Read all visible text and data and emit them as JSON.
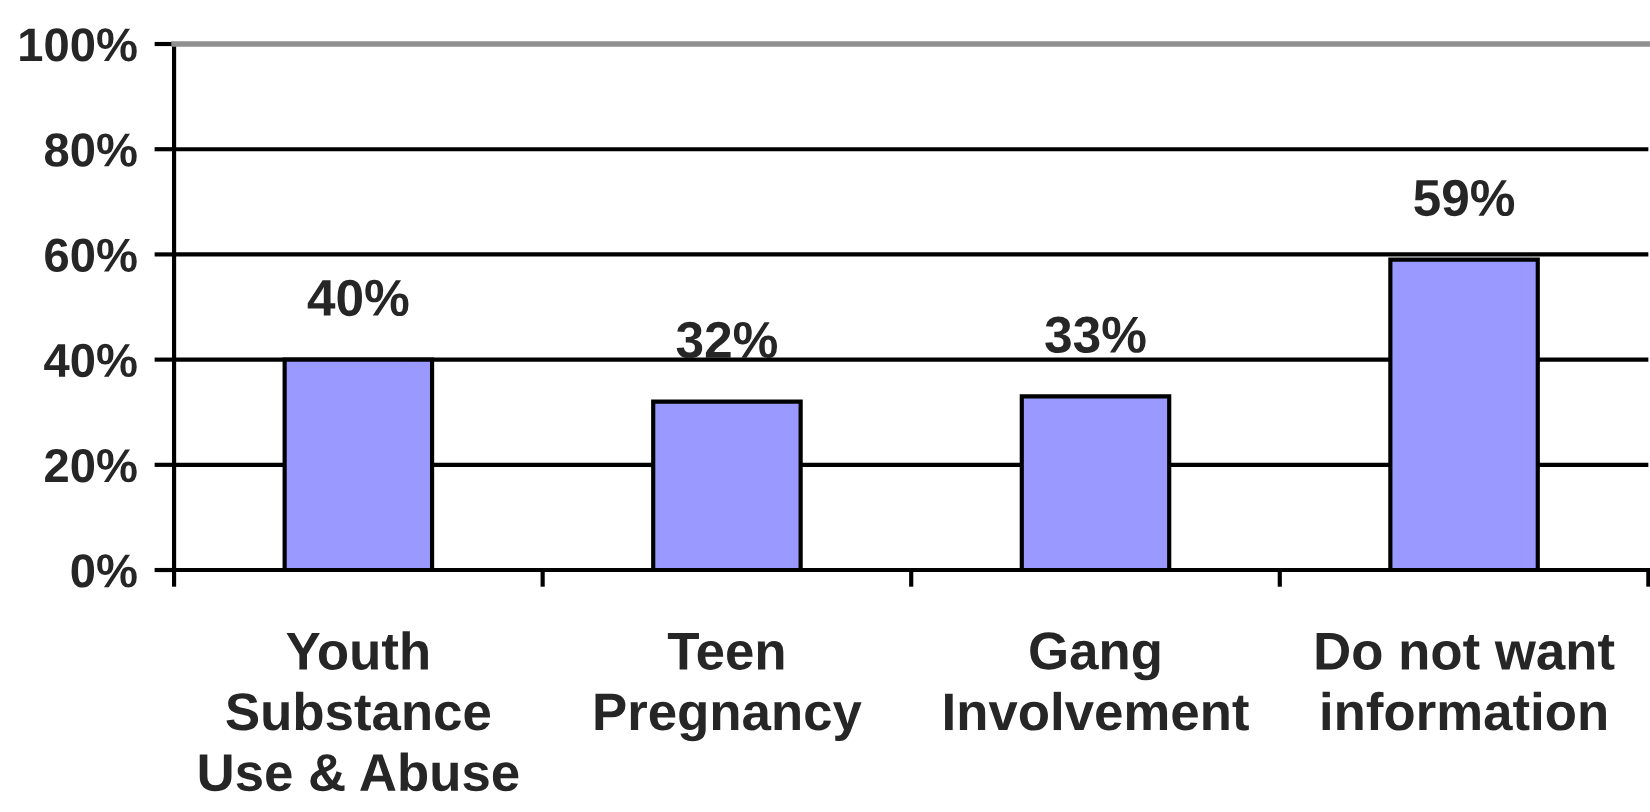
{
  "chart_data": {
    "type": "bar",
    "categories": [
      "Youth\nSubstance\nUse & Abuse",
      "Teen\nPregnancy",
      "Gang\nInvolvement",
      "Do not want\ninformation"
    ],
    "values": [
      40,
      32,
      33,
      59
    ],
    "color": "#9999ff",
    "value_labels": [
      "40%",
      "32%",
      "33%",
      "59%"
    ],
    "ylim": [
      0,
      100
    ],
    "yticks": [
      {
        "value": 0,
        "label": "0%"
      },
      {
        "value": 20,
        "label": "20%"
      },
      {
        "value": 40,
        "label": "40%"
      },
      {
        "value": 60,
        "label": "60%"
      },
      {
        "value": 80,
        "label": "80%"
      },
      {
        "value": 100,
        "label": "100%"
      }
    ],
    "grid": "y",
    "legend": false
  }
}
